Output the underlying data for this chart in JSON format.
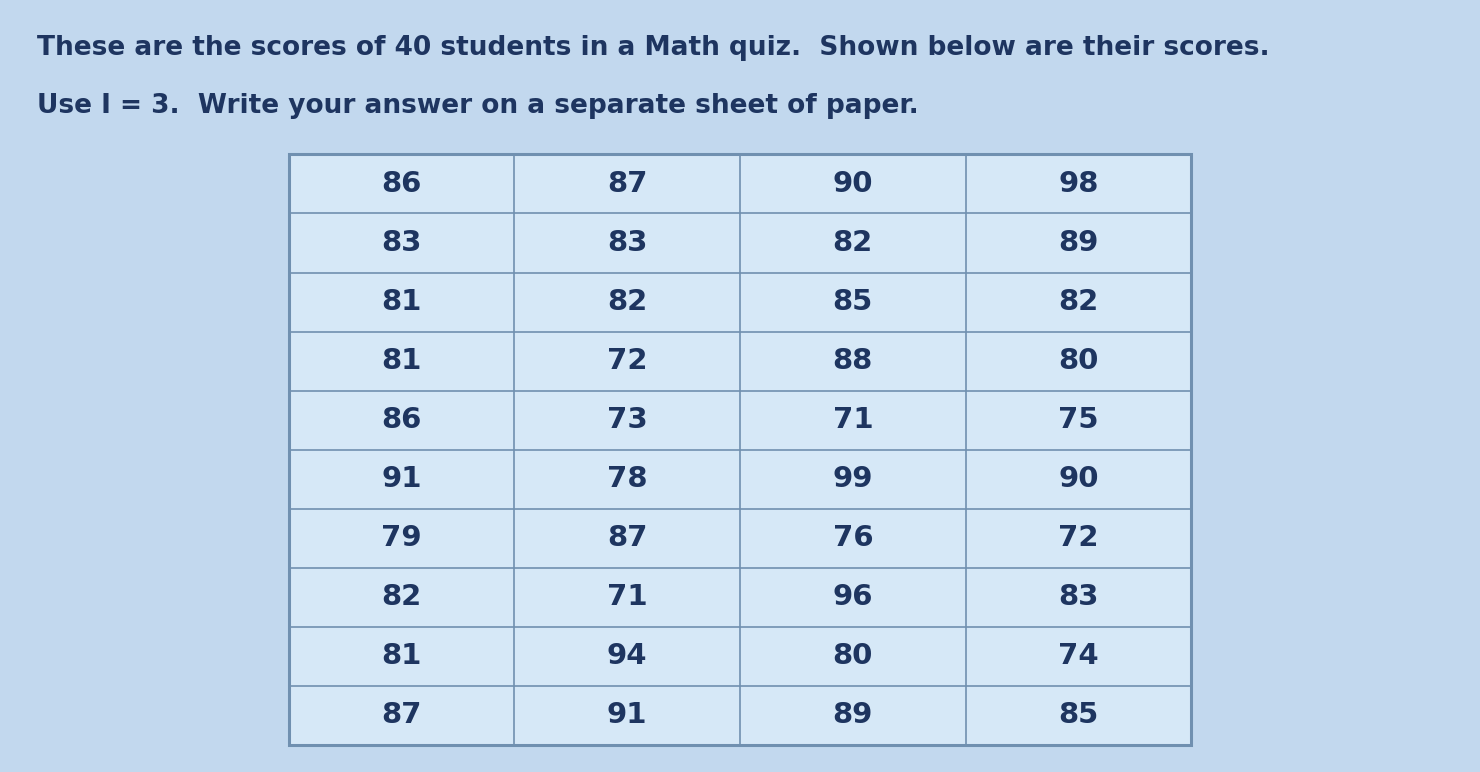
{
  "title_line1": "These are the scores of 40 students in a Math quiz.  Shown below are their scores.",
  "title_line2": "Use I = 3.  Write your answer on a separate sheet of paper.",
  "table_data": [
    [
      86,
      87,
      90,
      98
    ],
    [
      83,
      83,
      82,
      89
    ],
    [
      81,
      82,
      85,
      82
    ],
    [
      81,
      72,
      88,
      80
    ],
    [
      86,
      73,
      71,
      75
    ],
    [
      91,
      78,
      99,
      90
    ],
    [
      79,
      87,
      76,
      72
    ],
    [
      82,
      71,
      96,
      83
    ],
    [
      81,
      94,
      80,
      74
    ],
    [
      87,
      91,
      89,
      85
    ]
  ],
  "background_color": "#c2d8ee",
  "table_bg_color": "#d6e8f7",
  "table_border_color": "#7090b0",
  "text_color": "#1e3560",
  "title_fontsize": 19,
  "table_fontsize": 21,
  "fig_width": 14.8,
  "fig_height": 7.72
}
